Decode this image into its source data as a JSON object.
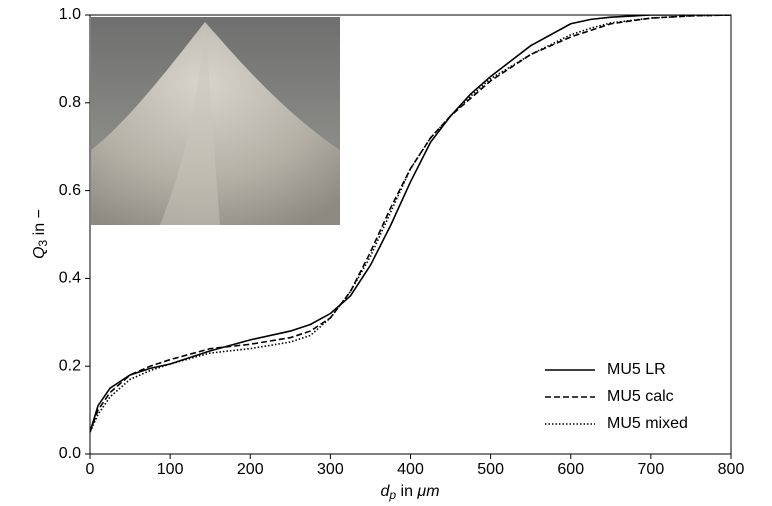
{
  "chart_data": {
    "type": "line",
    "xlabel": {
      "symbol": "d",
      "subscript": "p",
      "text": "in",
      "unit": "μm"
    },
    "ylabel": {
      "symbol": "Q",
      "subscript": "3",
      "text": "in −"
    },
    "x": [
      0,
      10,
      25,
      50,
      75,
      100,
      150,
      200,
      250,
      275,
      300,
      325,
      350,
      375,
      400,
      425,
      450,
      475,
      500,
      550,
      600,
      625,
      650,
      700,
      750,
      800
    ],
    "series": [
      {
        "name": "MU5 LR",
        "color": "#000000",
        "dash": "solid",
        "values": [
          0.05,
          0.11,
          0.15,
          0.18,
          0.195,
          0.205,
          0.235,
          0.26,
          0.28,
          0.295,
          0.32,
          0.36,
          0.43,
          0.52,
          0.62,
          0.71,
          0.77,
          0.82,
          0.86,
          0.93,
          0.98,
          0.99,
          0.995,
          1.0,
          1.0,
          1.0
        ]
      },
      {
        "name": "MU5 calc",
        "color": "#000000",
        "dash": "dashed",
        "values": [
          0.05,
          0.1,
          0.14,
          0.18,
          0.2,
          0.215,
          0.24,
          0.25,
          0.265,
          0.28,
          0.31,
          0.37,
          0.46,
          0.56,
          0.65,
          0.72,
          0.77,
          0.81,
          0.85,
          0.91,
          0.95,
          0.965,
          0.98,
          0.993,
          0.998,
          1.0
        ]
      },
      {
        "name": "MU5 mixed",
        "color": "#000000",
        "dash": "dotted",
        "values": [
          0.05,
          0.09,
          0.13,
          0.17,
          0.19,
          0.205,
          0.23,
          0.24,
          0.255,
          0.27,
          0.31,
          0.37,
          0.45,
          0.55,
          0.65,
          0.72,
          0.77,
          0.815,
          0.855,
          0.91,
          0.955,
          0.97,
          0.982,
          0.993,
          0.998,
          1.0
        ]
      }
    ],
    "xlim": [
      0,
      800
    ],
    "xticks": [
      0,
      100,
      200,
      300,
      400,
      500,
      600,
      700,
      800
    ],
    "ylim": [
      0,
      1
    ],
    "yticks": [
      {
        "value": 0,
        "label": "0.0"
      },
      0.2,
      0.4,
      0.6,
      0.8,
      {
        "value": 1,
        "label": "1.0"
      }
    ],
    "legend": "lower right",
    "grid": false
  }
}
